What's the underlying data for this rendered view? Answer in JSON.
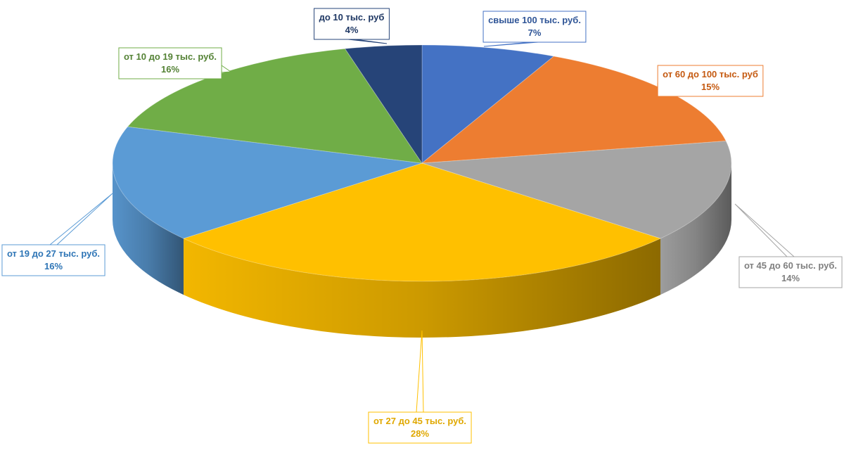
{
  "chart_data": {
    "type": "pie",
    "title": "",
    "three_d": true,
    "legend": "none",
    "slices": [
      {
        "label": "свыше 100 тыс. руб.",
        "percent_label": "7%",
        "value": 7,
        "color": "#4472C4",
        "label_color": "#2F5597"
      },
      {
        "label": "от 60 до 100 тыс. руб",
        "percent_label": "15%",
        "value": 15,
        "color": "#ED7D31",
        "label_color": "#C55A11"
      },
      {
        "label": "от 45 до 60 тыс. руб.",
        "percent_label": "14%",
        "value": 14,
        "color": "#A5A5A5",
        "label_color": "#7F7F7F"
      },
      {
        "label": "от 27 до 45 тыс. руб.",
        "percent_label": "28%",
        "value": 28,
        "color": "#FFC000",
        "label_color": "#E0A800"
      },
      {
        "label": "от 19 до 27 тыс. руб.",
        "percent_label": "16%",
        "value": 16,
        "color": "#5B9BD5",
        "label_color": "#2E75B6"
      },
      {
        "label": "от 10 до 19 тыс. руб.",
        "percent_label": "16%",
        "value": 16,
        "color": "#70AD47",
        "label_color": "#548235"
      },
      {
        "label": "до 10 тыс. руб",
        "percent_label": "4%",
        "value": 4,
        "color": "#264478",
        "label_color": "#1F3864"
      }
    ]
  }
}
